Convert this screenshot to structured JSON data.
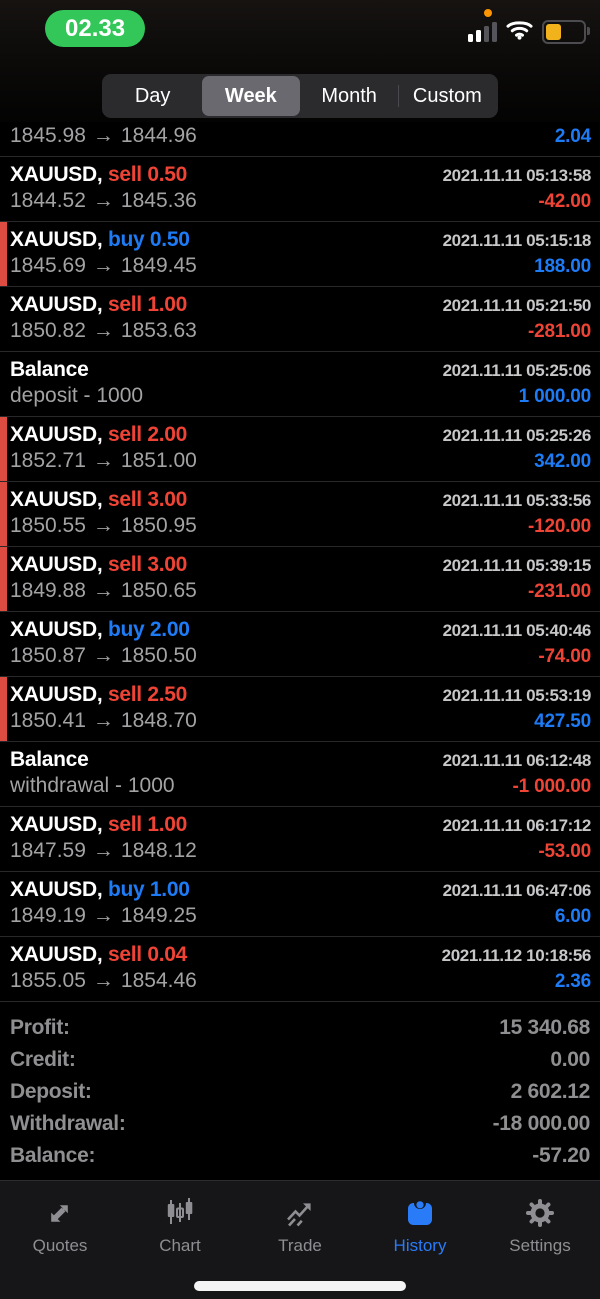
{
  "colors": {
    "buy_blue": "#1e7bf6",
    "sell_red": "#ef4335",
    "accent_strip_red": "#dd4b41",
    "time_pill_green": "#32c758",
    "battery_yellow": "#f1b21b",
    "recording_dot_orange": "#ff9500",
    "nav_active_blue": "#2a7bf7"
  },
  "status": {
    "time": "02.33"
  },
  "segmented": {
    "options": [
      "Day",
      "Week",
      "Month",
      "Custom"
    ],
    "selected": "Week"
  },
  "history": {
    "rows": [
      {
        "type": "partial",
        "price_open": "1845.98",
        "price_close": "1844.96",
        "profit": "2.04",
        "profit_color": "blue"
      },
      {
        "type": "trade",
        "symbol": "XAUUSD,",
        "side": "sell",
        "volume": "0.50",
        "datetime": "2021.11.11 05:13:58",
        "price_open": "1844.52",
        "price_close": "1845.36",
        "profit": "-42.00",
        "profit_color": "red",
        "strip": false
      },
      {
        "type": "trade",
        "symbol": "XAUUSD,",
        "side": "buy",
        "volume": "0.50",
        "datetime": "2021.11.11 05:15:18",
        "price_open": "1845.69",
        "price_close": "1849.45",
        "profit": "188.00",
        "profit_color": "blue",
        "strip": true
      },
      {
        "type": "trade",
        "symbol": "XAUUSD,",
        "side": "sell",
        "volume": "1.00",
        "datetime": "2021.11.11 05:21:50",
        "price_open": "1850.82",
        "price_close": "1853.63",
        "profit": "-281.00",
        "profit_color": "red",
        "strip": false
      },
      {
        "type": "balance",
        "title": "Balance",
        "datetime": "2021.11.11 05:25:06",
        "description": "deposit - 1000",
        "profit": "1 000.00",
        "profit_color": "blue"
      },
      {
        "type": "trade",
        "symbol": "XAUUSD,",
        "side": "sell",
        "volume": "2.00",
        "datetime": "2021.11.11 05:25:26",
        "price_open": "1852.71",
        "price_close": "1851.00",
        "profit": "342.00",
        "profit_color": "blue",
        "strip": true
      },
      {
        "type": "trade",
        "symbol": "XAUUSD,",
        "side": "sell",
        "volume": "3.00",
        "datetime": "2021.11.11 05:33:56",
        "price_open": "1850.55",
        "price_close": "1850.95",
        "profit": "-120.00",
        "profit_color": "red",
        "strip": true
      },
      {
        "type": "trade",
        "symbol": "XAUUSD,",
        "side": "sell",
        "volume": "3.00",
        "datetime": "2021.11.11 05:39:15",
        "price_open": "1849.88",
        "price_close": "1850.65",
        "profit": "-231.00",
        "profit_color": "red",
        "strip": true
      },
      {
        "type": "trade",
        "symbol": "XAUUSD,",
        "side": "buy",
        "volume": "2.00",
        "datetime": "2021.11.11 05:40:46",
        "price_open": "1850.87",
        "price_close": "1850.50",
        "profit": "-74.00",
        "profit_color": "red",
        "strip": false
      },
      {
        "type": "trade",
        "symbol": "XAUUSD,",
        "side": "sell",
        "volume": "2.50",
        "datetime": "2021.11.11 05:53:19",
        "price_open": "1850.41",
        "price_close": "1848.70",
        "profit": "427.50",
        "profit_color": "blue",
        "strip": true
      },
      {
        "type": "balance",
        "title": "Balance",
        "datetime": "2021.11.11 06:12:48",
        "description": "withdrawal - 1000",
        "profit": "-1 000.00",
        "profit_color": "red"
      },
      {
        "type": "trade",
        "symbol": "XAUUSD,",
        "side": "sell",
        "volume": "1.00",
        "datetime": "2021.11.11 06:17:12",
        "price_open": "1847.59",
        "price_close": "1848.12",
        "profit": "-53.00",
        "profit_color": "red",
        "strip": false
      },
      {
        "type": "trade",
        "symbol": "XAUUSD,",
        "side": "buy",
        "volume": "1.00",
        "datetime": "2021.11.11 06:47:06",
        "price_open": "1849.19",
        "price_close": "1849.25",
        "profit": "6.00",
        "profit_color": "blue",
        "strip": false
      },
      {
        "type": "trade",
        "symbol": "XAUUSD,",
        "side": "sell",
        "volume": "0.04",
        "datetime": "2021.11.12 10:18:56",
        "price_open": "1855.05",
        "price_close": "1854.46",
        "profit": "2.36",
        "profit_color": "blue",
        "strip": false
      }
    ]
  },
  "summary": {
    "items": [
      {
        "label": "Profit:",
        "value": "15 340.68"
      },
      {
        "label": "Credit:",
        "value": "0.00"
      },
      {
        "label": "Deposit:",
        "value": "2 602.12"
      },
      {
        "label": "Withdrawal:",
        "value": "-18 000.00"
      },
      {
        "label": "Balance:",
        "value": "-57.20"
      }
    ]
  },
  "nav": {
    "items": [
      {
        "label": "Quotes",
        "icon": "quotes-icon",
        "active": false
      },
      {
        "label": "Chart",
        "icon": "chart-icon",
        "active": false
      },
      {
        "label": "Trade",
        "icon": "trade-icon",
        "active": false
      },
      {
        "label": "History",
        "icon": "history-icon",
        "active": true
      },
      {
        "label": "Settings",
        "icon": "settings-icon",
        "active": false
      }
    ]
  }
}
